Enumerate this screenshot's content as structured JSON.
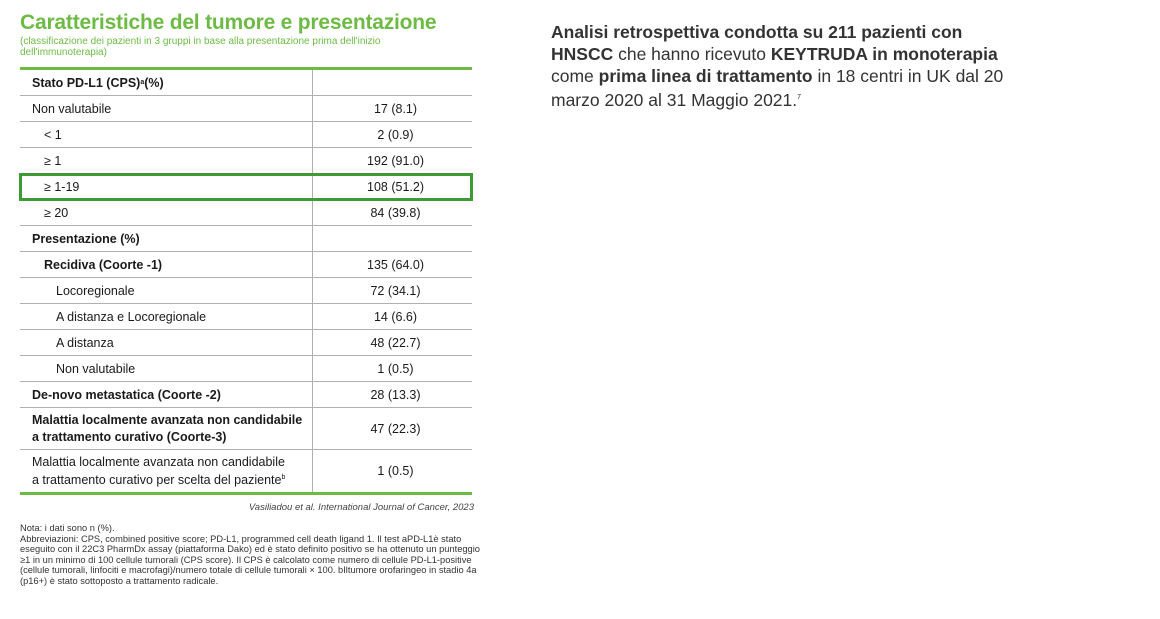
{
  "title": "Caratteristiche del tumore e presentazione",
  "subtitle": "(classificazione dei pazienti in 3 gruppi in base alla presentazione prima dell'inizio dell'immunoterapia)",
  "table": {
    "rows": [
      {
        "label": "Stato PD-L1  (CPS)",
        "sup": "a",
        "label_suffix": " (%)",
        "value": ""
      },
      {
        "label": "Non valutabile",
        "value": "17 (8.1)"
      },
      {
        "label": "< 1",
        "value": "2 (0.9)"
      },
      {
        "label": "≥ 1",
        "value": "192 (91.0)"
      },
      {
        "label": "≥ 1-19",
        "value": "108 (51.2)"
      },
      {
        "label": "≥ 20",
        "value": "84 (39.8)"
      },
      {
        "label": "Presentazione (%)",
        "value": ""
      },
      {
        "label": "Recidiva (Coorte -1)",
        "value": "135 (64.0)"
      },
      {
        "label": "Locoregionale",
        "value": "72 (34.1)"
      },
      {
        "label": "A distanza e Locoregionale",
        "value": "14 (6.6)"
      },
      {
        "label": "A distanza",
        "value": "48 (22.7)"
      },
      {
        "label": "Non valutabile",
        "value": "1 (0.5)"
      },
      {
        "label": "De-novo metastatica (Coorte -2)",
        "value": "28 (13.3)"
      },
      {
        "label_line1": "Malattia localmente avanzata non candidabile",
        "label_line2": "a trattamento curativo (Coorte-3)",
        "value": "47 (22.3)"
      },
      {
        "label_line1": "Malattia localmente avanzata non candidabile",
        "label_line2": "a trattamento curativo per scelta del paziente",
        "sup": "b",
        "value": "1 (0.5)"
      }
    ]
  },
  "citation": "Vasiliadou et al. International Journal of Cancer, 2023",
  "notes": {
    "line1": "Nota: i dati sono n (%).",
    "line2": "Abbreviazioni: CPS, combined positive score; PD-L1, programmed cell death ligand 1. Il test aPD-L1è stato eseguito con il 22C3 PharmDx assay (piattaforma Dako) ed è stato definito positivo se ha ottenuto un punteggio ≥1 in un minimo di 100 cellule tumorali (CPS score). Il CPS è calcolato come numero di cellule PD-L1-positive (cellule tumorali, linfociti e macrofagi)/numero totale di cellule tumorali × 100. bIltumore orofaringeo in stadio 4a (p16+) è stato sottoposto a trattamento radicale."
  },
  "intro": {
    "p1": "Analisi retrospettiva condotta su ",
    "p2": "211 pazienti con HNSCC",
    "p3": " che hanno ricevuto ",
    "p4": "KEYTRUDA in monoterapia",
    "p5": " come ",
    "p6": "prima linea di trattamento",
    "p7": " in 18 centri in UK dal 20 marzo 2020 al 31 Maggio 2021.",
    "ref": "7"
  },
  "colors": {
    "accent": "#6dbb45",
    "highlight_border": "#3e9a35"
  }
}
